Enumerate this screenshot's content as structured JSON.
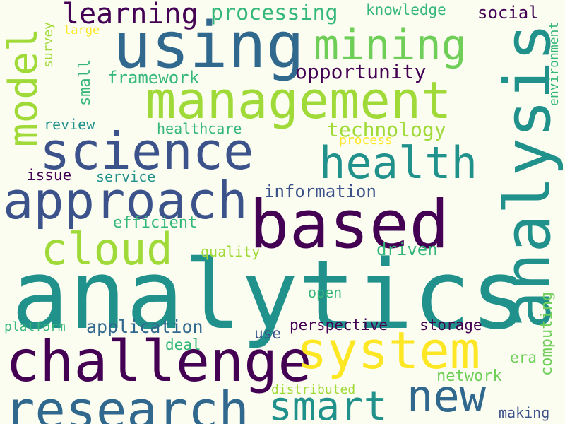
{
  "palette": {
    "background": "#fcfdf1",
    "dark_purple": "#440154",
    "indigo": "#3b528b",
    "blue": "#31688e",
    "teal": "#21918c",
    "green": "#35b779",
    "light_green": "#6ece58",
    "lime": "#a0da39",
    "yellow": "#fde725"
  },
  "words": {
    "analytics": "analytics",
    "analysis": "analysis",
    "based": "based",
    "using": "using",
    "management": "management",
    "science": "science",
    "approach": "approach",
    "challenge": "challenge",
    "research": "research",
    "system": "system",
    "mining": "mining",
    "health": "health",
    "model": "model",
    "cloud": "cloud",
    "smart": "smart",
    "new": "new",
    "learning": "learning",
    "processing": "processing",
    "knowledge": "knowledge",
    "social": "social",
    "large": "large",
    "survey": "survey",
    "small": "small",
    "framework": "framework",
    "opportunity": "opportunity",
    "environment": "environment",
    "review": "review",
    "healthcare": "healthcare",
    "technology": "technology",
    "process": "process",
    "issue": "issue",
    "service": "service",
    "information": "information",
    "efficient": "efficient",
    "quality": "quality",
    "driven": "driven",
    "computing": "computing",
    "open": "open",
    "platform": "platform",
    "application": "application",
    "use": "use",
    "perspective": "perspective",
    "storage": "storage",
    "deal": "deal",
    "era": "era",
    "network": "network",
    "distributed": "distributed",
    "making": "making"
  }
}
